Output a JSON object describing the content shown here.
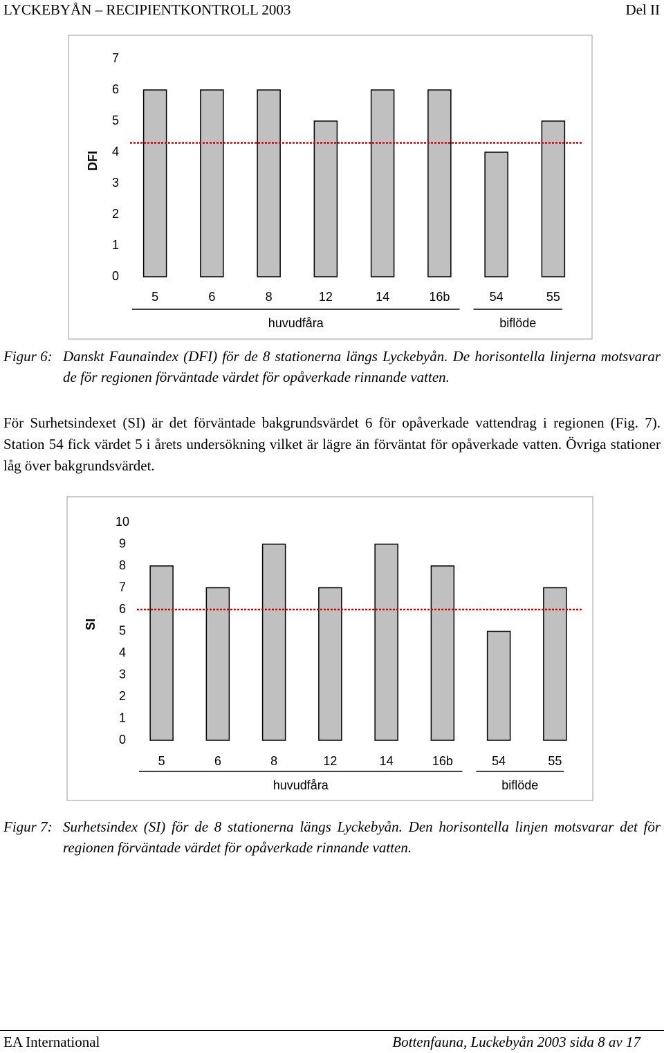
{
  "header": {
    "left": "LYCKEBYÅN – RECIPIENTKONTROLL 2003",
    "right": "Del II"
  },
  "chart_data": [
    {
      "type": "bar",
      "y_label": "DFI",
      "categories": [
        "5",
        "6",
        "8",
        "12",
        "14",
        "16b",
        "54",
        "55"
      ],
      "values": [
        6,
        6,
        6,
        5,
        6,
        6,
        4,
        5
      ],
      "color": "#c0c0c0",
      "ylim": [
        0,
        7
      ],
      "yticks": [
        0,
        1,
        2,
        3,
        4,
        5,
        6,
        7
      ],
      "reference_line": {
        "value": 4.3,
        "color": "#cc0000"
      },
      "groups": [
        {
          "label": "huvudfåra",
          "size": 6
        },
        {
          "label": "biflöde",
          "size": 2
        }
      ]
    },
    {
      "type": "bar",
      "y_label": "SI",
      "categories": [
        "5",
        "6",
        "8",
        "12",
        "14",
        "16b",
        "54",
        "55"
      ],
      "values": [
        8,
        7,
        9,
        7,
        9,
        8,
        5,
        7
      ],
      "color": "#c0c0c0",
      "ylim": [
        0,
        10
      ],
      "yticks": [
        0,
        1,
        2,
        3,
        4,
        5,
        6,
        7,
        8,
        9,
        10
      ],
      "reference_line": {
        "value": 6,
        "color": "#cc0000"
      },
      "groups": [
        {
          "label": "huvudfåra",
          "size": 6
        },
        {
          "label": "biflöde",
          "size": 2
        }
      ]
    }
  ],
  "captions": [
    {
      "label": "Figur 6:",
      "text": "Danskt Faunaindex (DFI) för de 8 stationerna längs Lyckebyån. De horisontella linjerna motsvarar de för regionen förväntade värdet för opåverkade rinnande vatten."
    },
    {
      "label": "Figur 7:",
      "text": "Surhetsindex (SI) för de 8 stationerna längs Lyckebyån. Den horisontella linjen motsvarar det för regionen förväntade värdet för opåverkade rinnande vatten."
    }
  ],
  "paragraph": "För Surhetsindexet (SI) är det förväntade bakgrundsvärdet 6 för opåverkade vattendrag i regionen (Fig. 7). Station 54 fick värdet 5 i årets undersökning vilket är lägre än förväntat för opåverkade vatten. Övriga stationer låg över bakgrundsvärdet.",
  "footer": {
    "left": "EA International",
    "right": "Bottenfauna, Luckebyån 2003  sida 8 av 17"
  }
}
